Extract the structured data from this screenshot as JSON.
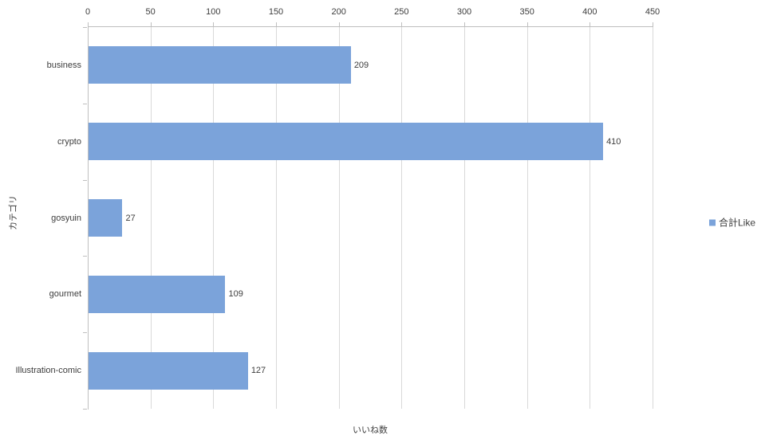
{
  "chart_data": {
    "type": "bar",
    "orientation": "horizontal",
    "categories": [
      "business",
      "crypto",
      "gosyuin",
      "gourmet",
      "Illustration-comic"
    ],
    "series": [
      {
        "name": "合計Like",
        "values": [
          209,
          410,
          27,
          109,
          127
        ]
      }
    ],
    "data_labels": [
      209,
      410,
      27,
      109,
      127
    ],
    "xlabel": "いいね数",
    "ylabel": "カテゴリ",
    "xlim": [
      0,
      450
    ],
    "xticks": [
      0,
      50,
      100,
      150,
      200,
      250,
      300,
      350,
      400,
      450
    ],
    "grid": true,
    "legend_position": "right"
  },
  "colors": {
    "bar": "#7ba3da",
    "gridline": "#d9d9d9",
    "axis": "#bfbfbf",
    "text": "#3d3d3d",
    "background": "#ffffff"
  }
}
